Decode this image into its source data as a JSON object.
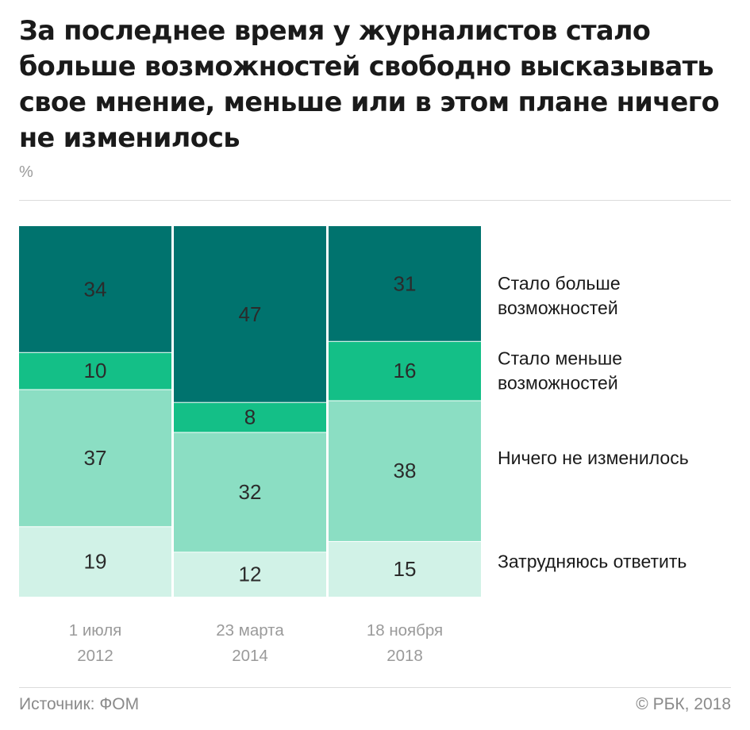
{
  "title": "За последнее время у журналистов стало больше возможностей свободно высказывать свое мнение, меньше или в этом плане ничего не изменилось",
  "unit": "%",
  "footer": {
    "source": "Источник: ФОМ",
    "copyright": "© РБК, 2018"
  },
  "chart_data": {
    "type": "bar",
    "stacked": true,
    "normalized": true,
    "categories": [
      {
        "line1": "1 июля",
        "line2": "2012"
      },
      {
        "line1": "23 марта",
        "line2": "2014"
      },
      {
        "line1": "18 ноября",
        "line2": "2018"
      }
    ],
    "series": [
      {
        "name": "Стало больше возможностей",
        "label_lines": [
          "Стало больше",
          "возможностей"
        ],
        "values": [
          34,
          47,
          31
        ],
        "color": "#00736e"
      },
      {
        "name": "Стало меньше возможностей",
        "label_lines": [
          "Стало меньше",
          "возможностей"
        ],
        "values": [
          10,
          8,
          16
        ],
        "color": "#14bf87"
      },
      {
        "name": "Ничего не изменилось",
        "label_lines": [
          "Ничего не изменилось"
        ],
        "values": [
          37,
          32,
          38
        ],
        "color": "#8bdec3"
      },
      {
        "name": "Затрудняюсь ответить",
        "label_lines": [
          "Затрудняюсь ответить"
        ],
        "values": [
          19,
          12,
          15
        ],
        "color": "#d1f2e7"
      }
    ],
    "legend": "right",
    "grid": false
  }
}
